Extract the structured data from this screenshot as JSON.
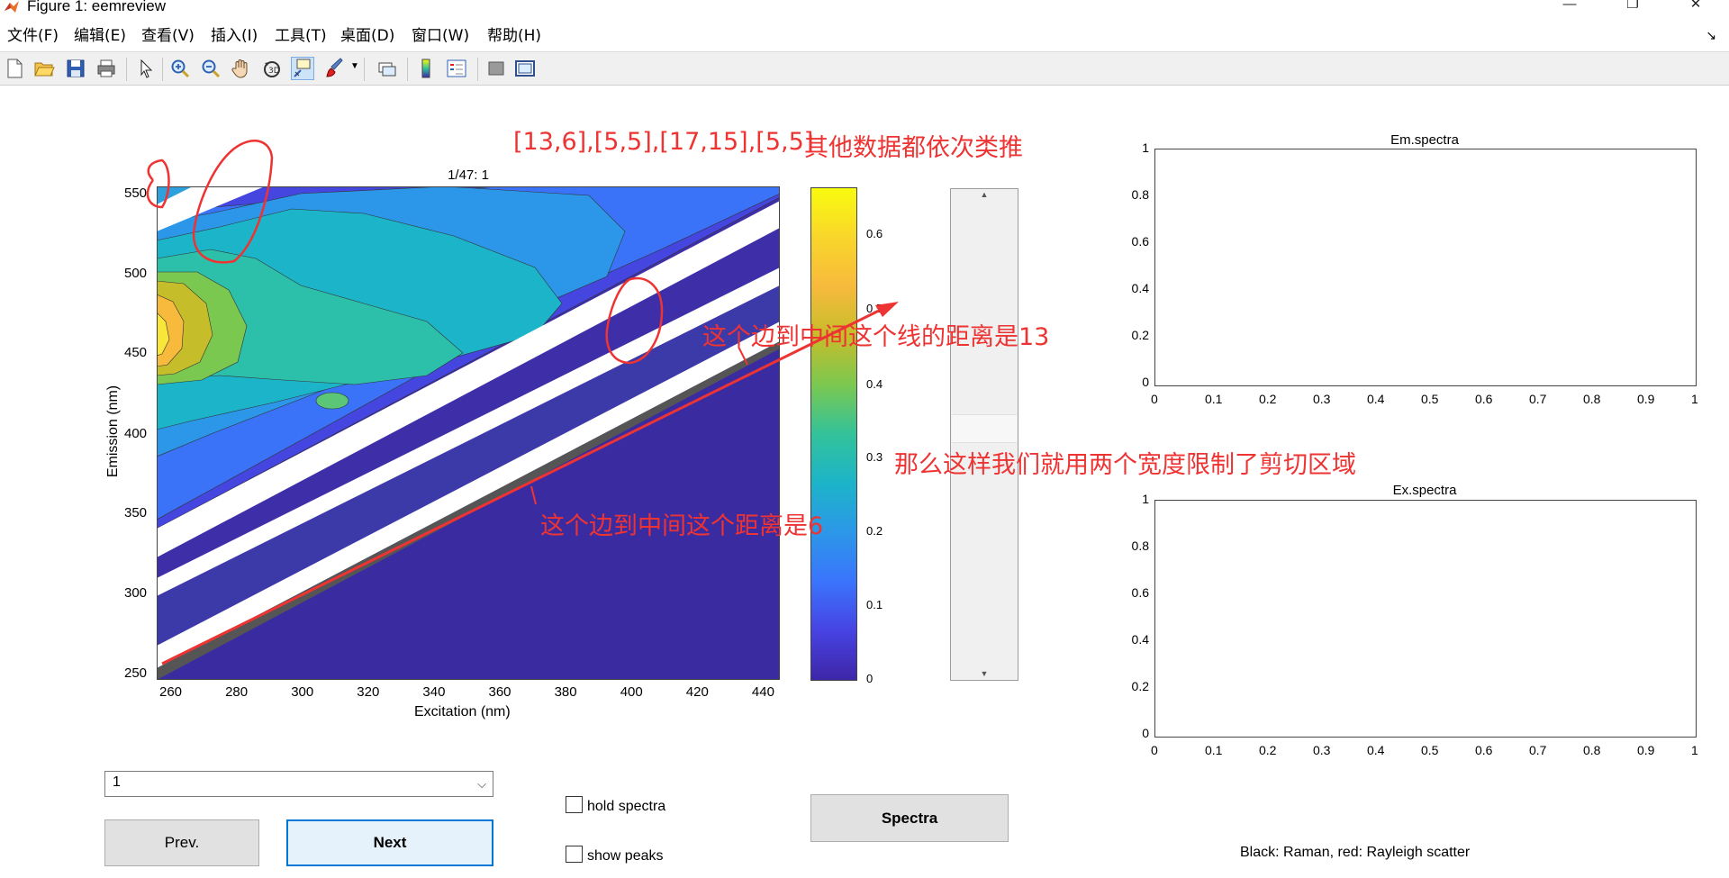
{
  "window": {
    "title": "Figure 1: eemreview",
    "controls": [
      "—",
      "❐",
      "✕"
    ]
  },
  "menu": [
    "文件(F)",
    "编辑(E)",
    "查看(V)",
    "插入(I)",
    "工具(T)",
    "桌面(D)",
    "窗口(W)",
    "帮助(H)"
  ],
  "menu_arrow": "↘",
  "toolbar": {
    "icons": [
      "new-figure-icon",
      "open-file-icon",
      "save-icon",
      "print-icon",
      "pointer-icon",
      "zoom-in-icon",
      "zoom-out-icon",
      "pan-hand-icon",
      "rotate-3d-icon",
      "data-cursor-icon",
      "brush-icon",
      "link-plot-icon",
      "colorbar-icon",
      "legend-icon",
      "hide-plot-tools-icon",
      "show-plot-tools-icon"
    ],
    "active": "data-cursor-icon"
  },
  "contour_plot": {
    "title": "1/47:  1",
    "xlabel": "Excitation (nm)",
    "ylabel": "Emission (nm)",
    "xticks": [
      "260",
      "280",
      "300",
      "320",
      "340",
      "360",
      "380",
      "400",
      "420",
      "440"
    ],
    "yticks": [
      "550",
      "500",
      "450",
      "400",
      "350",
      "300",
      "250"
    ]
  },
  "colorbar": {
    "ticks": [
      "0.6",
      "0.5",
      "0.4",
      "0.3",
      "0.2",
      "0.1",
      "0"
    ],
    "colormap": "parula"
  },
  "em_spectra": {
    "title": "Em.spectra",
    "xticks": [
      "0",
      "0.1",
      "0.2",
      "0.3",
      "0.4",
      "0.5",
      "0.6",
      "0.7",
      "0.8",
      "0.9",
      "1"
    ],
    "yticks": [
      "1",
      "0.8",
      "0.6",
      "0.4",
      "0.2",
      "0"
    ]
  },
  "ex_spectra": {
    "title": "Ex.spectra",
    "xticks": [
      "0",
      "0.1",
      "0.2",
      "0.3",
      "0.4",
      "0.5",
      "0.6",
      "0.7",
      "0.8",
      "0.9",
      "1"
    ],
    "yticks": [
      "1",
      "0.8",
      "0.6",
      "0.4",
      "0.2",
      "0"
    ]
  },
  "controls": {
    "dropdown_value": "1",
    "prev_label": "Prev.",
    "next_label": "Next",
    "hold_spectra_label": "hold spectra",
    "show_peaks_label": "show peaks",
    "spectra_label": "Spectra"
  },
  "legend_note": "Black: Raman, red: Rayleigh scatter",
  "annotations": {
    "widths": "[13,6],[5,5],[17,15],[5,5]",
    "others": "其他数据都依次类推",
    "edge13": "这个边到中间这个线的距离是13",
    "edge6": "这个边到中间这个距离是6",
    "conclusion": "那么这样我们就用两个宽度限制了剪切区域",
    "color": "#ee3333"
  }
}
